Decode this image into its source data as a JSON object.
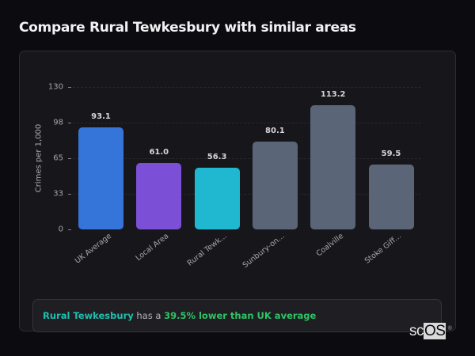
{
  "page": {
    "title": "Compare Rural Tewkesbury with similar areas"
  },
  "chart_data": {
    "type": "bar",
    "title": "Compare Rural Tewkesbury with similar areas",
    "xlabel": "",
    "ylabel": "Crimes per 1,000",
    "ylim": [
      0,
      130
    ],
    "yticks": [
      "0",
      "33",
      "65",
      "98",
      "130"
    ],
    "grid": true,
    "legend": "none",
    "categories": [
      "UK Average",
      "Local Area",
      "Rural Tewk...",
      "Sunbury-on...",
      "Coalville",
      "Stoke Giff..."
    ],
    "values": [
      93.1,
      61.0,
      56.3,
      80.1,
      113.2,
      59.5
    ],
    "value_labels": [
      "93.1",
      "61.0",
      "56.3",
      "80.1",
      "113.2",
      "59.5"
    ],
    "colors": [
      "#3574d8",
      "#7b4fd6",
      "#20b8d0",
      "#5a6577",
      "#5a6577",
      "#5a6577"
    ]
  },
  "insight": {
    "area": "Rural Tewkesbury",
    "connector": " has a ",
    "stat": "39.5% lower than UK average"
  },
  "branding": {
    "logo_sc": "sc",
    "logo_os": "OS",
    "logo_reg": "®"
  }
}
